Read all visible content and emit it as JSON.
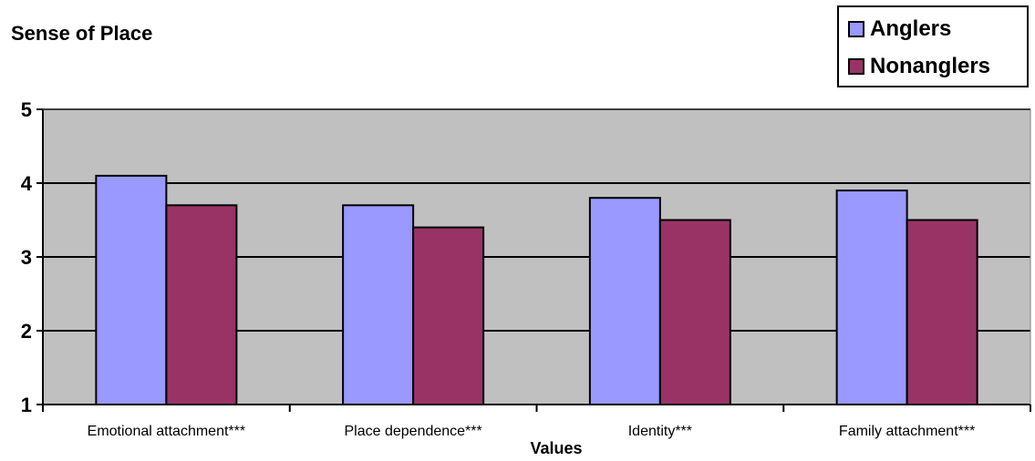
{
  "chart_data": {
    "type": "bar",
    "title": "Sense of Place",
    "xlabel": "Values",
    "ylabel": "",
    "ylim": [
      1,
      5
    ],
    "yticks": [
      "1",
      "2",
      "3",
      "4",
      "5"
    ],
    "grid": true,
    "legend_position": "top-right",
    "categories": [
      "Emotional attachment***",
      "Place dependence***",
      "Identity***",
      "Family attachment***"
    ],
    "series": [
      {
        "name": "Anglers",
        "color": "#9999ff",
        "values": [
          4.1,
          3.7,
          3.8,
          3.9
        ]
      },
      {
        "name": "Nonanglers",
        "color": "#993366",
        "values": [
          3.7,
          3.4,
          3.5,
          3.5
        ]
      }
    ],
    "plot_background": "#c0c0c0"
  }
}
